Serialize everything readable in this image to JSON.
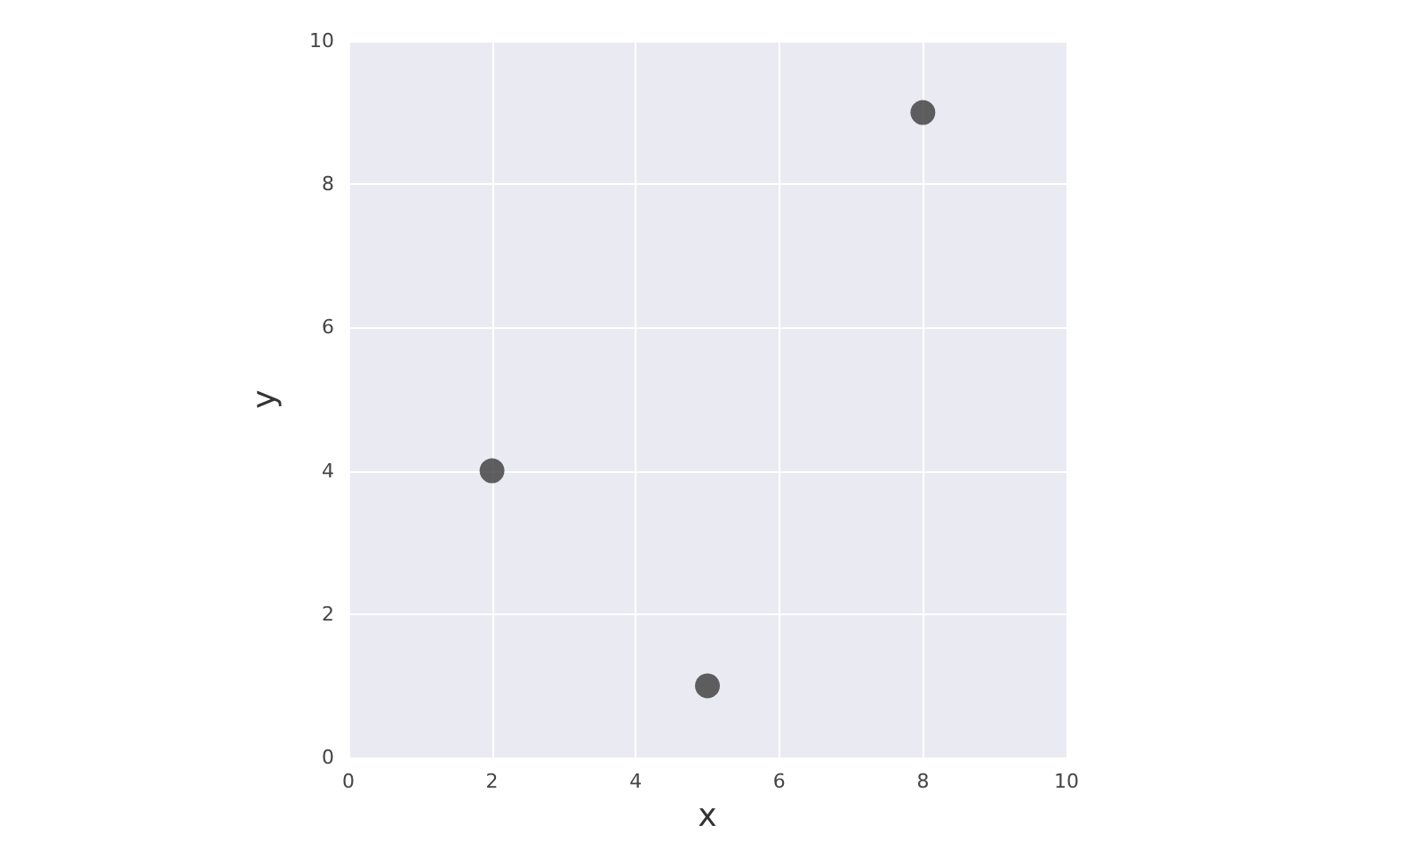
{
  "chart_data": {
    "type": "scatter",
    "xlabel": "x",
    "ylabel": "y",
    "x": [
      2,
      5,
      8
    ],
    "values": [
      4,
      1,
      9
    ],
    "color": "#3a3a3a",
    "xlim": [
      0,
      10
    ],
    "ylim": [
      0,
      10
    ],
    "xticks": [
      0,
      2,
      4,
      6,
      8,
      10
    ],
    "yticks": [
      0,
      2,
      4,
      6,
      8,
      10
    ],
    "grid": true,
    "marker": "circle"
  }
}
